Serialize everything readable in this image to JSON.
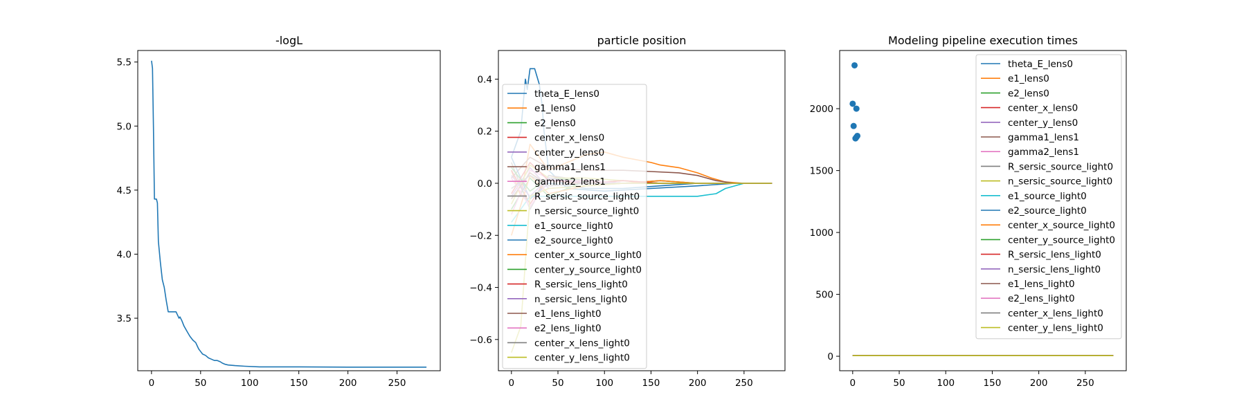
{
  "chart_data": [
    {
      "type": "line",
      "title": "-logL",
      "xlabel": "",
      "ylabel": "",
      "xlim": [
        -14,
        294
      ],
      "ylim": [
        3.09,
        5.59
      ],
      "xticks": [
        "0",
        "50",
        "100",
        "150",
        "200",
        "250"
      ],
      "yticks": [
        "3.5",
        "4.0",
        "4.5",
        "5.0",
        "5.5"
      ],
      "grid": false,
      "series": [
        {
          "color": "#1f77b4",
          "x": [
            0,
            1,
            2,
            3,
            5,
            6,
            7,
            9,
            11,
            13,
            15,
            17,
            20,
            25,
            28,
            29,
            31,
            33,
            36,
            39,
            42,
            45,
            48,
            50,
            52,
            55,
            58,
            61,
            64,
            67,
            70,
            72,
            75,
            78,
            85,
            95,
            110,
            150,
            200,
            250,
            280
          ],
          "values": [
            5.51,
            5.45,
            4.98,
            4.43,
            4.43,
            4.4,
            4.1,
            3.94,
            3.8,
            3.74,
            3.64,
            3.55,
            3.55,
            3.55,
            3.5,
            3.51,
            3.48,
            3.44,
            3.4,
            3.36,
            3.33,
            3.31,
            3.26,
            3.24,
            3.22,
            3.21,
            3.19,
            3.18,
            3.17,
            3.17,
            3.16,
            3.15,
            3.14,
            3.135,
            3.13,
            3.125,
            3.12,
            3.12,
            3.118,
            3.118,
            3.118
          ]
        }
      ]
    },
    {
      "type": "line",
      "title": "particle position",
      "xlabel": "",
      "ylabel": "",
      "xlim": [
        -14,
        294
      ],
      "ylim": [
        -0.72,
        0.51
      ],
      "xticks": [
        "0",
        "50",
        "100",
        "150",
        "200",
        "250"
      ],
      "yticks": [
        "0.4",
        "0.2",
        "0.0",
        "−0.2",
        "−0.4",
        "−0.6"
      ],
      "grid": false,
      "legend_position": "upper-left",
      "legend": [
        "theta_E_lens0",
        "e1_lens0",
        "e2_lens0",
        "center_x_lens0",
        "center_y_lens0",
        "gamma1_lens1",
        "gamma2_lens1",
        "R_sersic_source_light0",
        "n_sersic_source_light0",
        "e1_source_light0",
        "e2_source_light0",
        "center_x_source_light0",
        "center_y_source_light0",
        "R_sersic_lens_light0",
        "n_sersic_lens_light0",
        "e1_lens_light0",
        "e2_lens_light0",
        "center_x_lens_light0",
        "center_y_lens_light0"
      ],
      "colors": [
        "#1f77b4",
        "#ff7f0e",
        "#2ca02c",
        "#d62728",
        "#9467bd",
        "#8c564b",
        "#e377c2",
        "#7f7f7f",
        "#bcbd22",
        "#17becf",
        "#1f77b4",
        "#ff7f0e",
        "#2ca02c",
        "#d62728",
        "#9467bd",
        "#8c564b",
        "#e377c2",
        "#7f7f7f",
        "#bcbd22"
      ],
      "series": [
        {
          "x": [
            0,
            10,
            15,
            17,
            20,
            25,
            30,
            33,
            35,
            40,
            60,
            100,
            150,
            200,
            240,
            280
          ],
          "values": [
            0.1,
            0.2,
            0.4,
            0.36,
            0.44,
            0.44,
            0.38,
            0.3,
            0.2,
            0.05,
            -0.02,
            -0.03,
            -0.02,
            -0.01,
            0.0,
            0.0
          ]
        },
        {
          "x": [
            0,
            10,
            20,
            30,
            40,
            60,
            80,
            100,
            120,
            150,
            160,
            180,
            200,
            215,
            230,
            250,
            280
          ],
          "values": [
            0.05,
            -0.05,
            0.15,
            0.1,
            0.05,
            0.08,
            0.11,
            0.12,
            0.1,
            0.08,
            0.07,
            0.06,
            0.04,
            0.02,
            0.005,
            0.0,
            0.0
          ]
        },
        {
          "x": [
            0,
            20,
            40,
            80,
            120,
            160,
            200,
            240,
            280
          ],
          "values": [
            -0.1,
            0.02,
            -0.05,
            0.01,
            0.0,
            0.01,
            0.0,
            0.0,
            0.0
          ]
        },
        {
          "x": [
            0,
            20,
            40,
            80,
            120,
            160,
            200,
            240,
            280
          ],
          "values": [
            0.05,
            -0.08,
            0.03,
            0.0,
            0.01,
            0.0,
            0.0,
            0.0,
            0.0
          ]
        },
        {
          "x": [
            0,
            20,
            40,
            80,
            120,
            160,
            200,
            240,
            280
          ],
          "values": [
            -0.05,
            0.06,
            -0.02,
            -0.01,
            0.0,
            0.0,
            0.0,
            0.0,
            0.0
          ]
        },
        {
          "x": [
            0,
            20,
            40,
            80,
            120,
            150,
            180,
            200,
            220,
            240,
            280
          ],
          "values": [
            0.02,
            0.1,
            0.06,
            0.05,
            0.05,
            0.045,
            0.04,
            0.03,
            0.01,
            0.0,
            0.0
          ]
        },
        {
          "x": [
            0,
            20,
            40,
            80,
            120,
            160,
            200,
            240,
            280
          ],
          "values": [
            -0.12,
            0.05,
            0.02,
            0.01,
            0.0,
            0.0,
            0.0,
            0.0,
            0.0
          ]
        },
        {
          "x": [
            0,
            20,
            40,
            80,
            120,
            160,
            200,
            240,
            280
          ],
          "values": [
            0.08,
            -0.1,
            0.03,
            0.01,
            0.0,
            0.0,
            0.0,
            0.0,
            0.0
          ]
        },
        {
          "x": [
            0,
            20,
            40,
            80,
            120,
            160,
            200,
            240,
            280
          ],
          "values": [
            -0.08,
            0.07,
            0.02,
            0.02,
            0.01,
            0.0,
            0.0,
            0.0,
            0.0
          ]
        },
        {
          "x": [
            0,
            20,
            40,
            60,
            100,
            150,
            200,
            220,
            230,
            250,
            280
          ],
          "values": [
            -0.15,
            -0.05,
            -0.05,
            -0.05,
            -0.05,
            -0.05,
            -0.05,
            -0.04,
            -0.02,
            0.0,
            0.0
          ]
        },
        {
          "x": [
            0,
            20,
            40,
            80,
            120,
            160,
            200,
            240,
            280
          ],
          "values": [
            0.1,
            -0.06,
            0.0,
            -0.02,
            -0.02,
            -0.01,
            0.0,
            0.0,
            0.0
          ]
        },
        {
          "x": [
            0,
            20,
            40,
            80,
            120,
            160,
            200,
            240,
            280
          ],
          "values": [
            -0.2,
            0.03,
            -0.04,
            -0.01,
            0.0,
            0.01,
            0.0,
            0.0,
            0.0
          ]
        },
        {
          "x": [
            0,
            20,
            40,
            80,
            120,
            160,
            200,
            240,
            280
          ],
          "values": [
            0.06,
            -0.03,
            0.02,
            0.01,
            0.0,
            0.0,
            0.0,
            0.0,
            0.0
          ]
        },
        {
          "x": [
            0,
            20,
            40,
            80,
            120,
            160,
            200,
            240,
            280
          ],
          "values": [
            -0.04,
            0.08,
            0.01,
            0.0,
            0.01,
            0.0,
            0.0,
            0.0,
            0.0
          ]
        },
        {
          "x": [
            0,
            20,
            40,
            80,
            120,
            160,
            200,
            240,
            280
          ],
          "values": [
            0.03,
            -0.05,
            0.02,
            0.0,
            0.0,
            0.0,
            0.0,
            0.0,
            0.0
          ]
        },
        {
          "x": [
            0,
            20,
            40,
            80,
            120,
            160,
            200,
            240,
            280
          ],
          "values": [
            -0.06,
            0.04,
            -0.01,
            0.0,
            0.0,
            0.0,
            0.0,
            0.0,
            0.0
          ]
        },
        {
          "x": [
            0,
            20,
            40,
            80,
            120,
            160,
            200,
            240,
            280
          ],
          "values": [
            0.02,
            -0.09,
            0.01,
            0.01,
            0.0,
            0.0,
            0.0,
            0.0,
            0.0
          ]
        },
        {
          "x": [
            0,
            20,
            40,
            80,
            120,
            160,
            200,
            240,
            280
          ],
          "values": [
            -0.02,
            0.03,
            -0.01,
            0.0,
            0.0,
            0.0,
            0.0,
            0.0,
            0.0
          ]
        },
        {
          "x": [
            0,
            10,
            20,
            40,
            80,
            120,
            160,
            200,
            240,
            280
          ],
          "values": [
            -0.65,
            -0.55,
            -0.05,
            -0.02,
            -0.01,
            0.0,
            0.0,
            0.0,
            0.0,
            0.0
          ]
        }
      ]
    },
    {
      "type": "scatter",
      "title": "Modeling pipeline execution times",
      "xlabel": "",
      "ylabel": "",
      "xlim": [
        -14,
        294
      ],
      "ylim": [
        -117,
        2470
      ],
      "xticks": [
        "0",
        "50",
        "100",
        "150",
        "200",
        "250"
      ],
      "yticks": [
        "0",
        "500",
        "1000",
        "1500",
        "2000"
      ],
      "grid": false,
      "legend_position": "upper-right",
      "legend": [
        "theta_E_lens0",
        "e1_lens0",
        "e2_lens0",
        "center_x_lens0",
        "center_y_lens0",
        "gamma1_lens1",
        "gamma2_lens1",
        "R_sersic_source_light0",
        "n_sersic_source_light0",
        "e1_source_light0",
        "e2_source_light0",
        "center_x_source_light0",
        "center_y_source_light0",
        "R_sersic_lens_light0",
        "n_sersic_lens_light0",
        "e1_lens_light0",
        "e2_lens_light0",
        "center_x_lens_light0",
        "center_y_lens_light0"
      ],
      "colors": [
        "#1f77b4",
        "#ff7f0e",
        "#2ca02c",
        "#d62728",
        "#9467bd",
        "#8c564b",
        "#e377c2",
        "#7f7f7f",
        "#bcbd22",
        "#17becf",
        "#1f77b4",
        "#ff7f0e",
        "#2ca02c",
        "#d62728",
        "#9467bd",
        "#8c564b",
        "#e377c2",
        "#7f7f7f",
        "#bcbd22"
      ],
      "points": {
        "color": "#1f77b4",
        "x": [
          2,
          0,
          4,
          1,
          3,
          4,
          5
        ],
        "values": [
          2350,
          2040,
          2000,
          1860,
          1760,
          1770,
          1780
        ]
      },
      "flat_lines": {
        "x": [
          0,
          280
        ],
        "value": 5
      }
    }
  ]
}
